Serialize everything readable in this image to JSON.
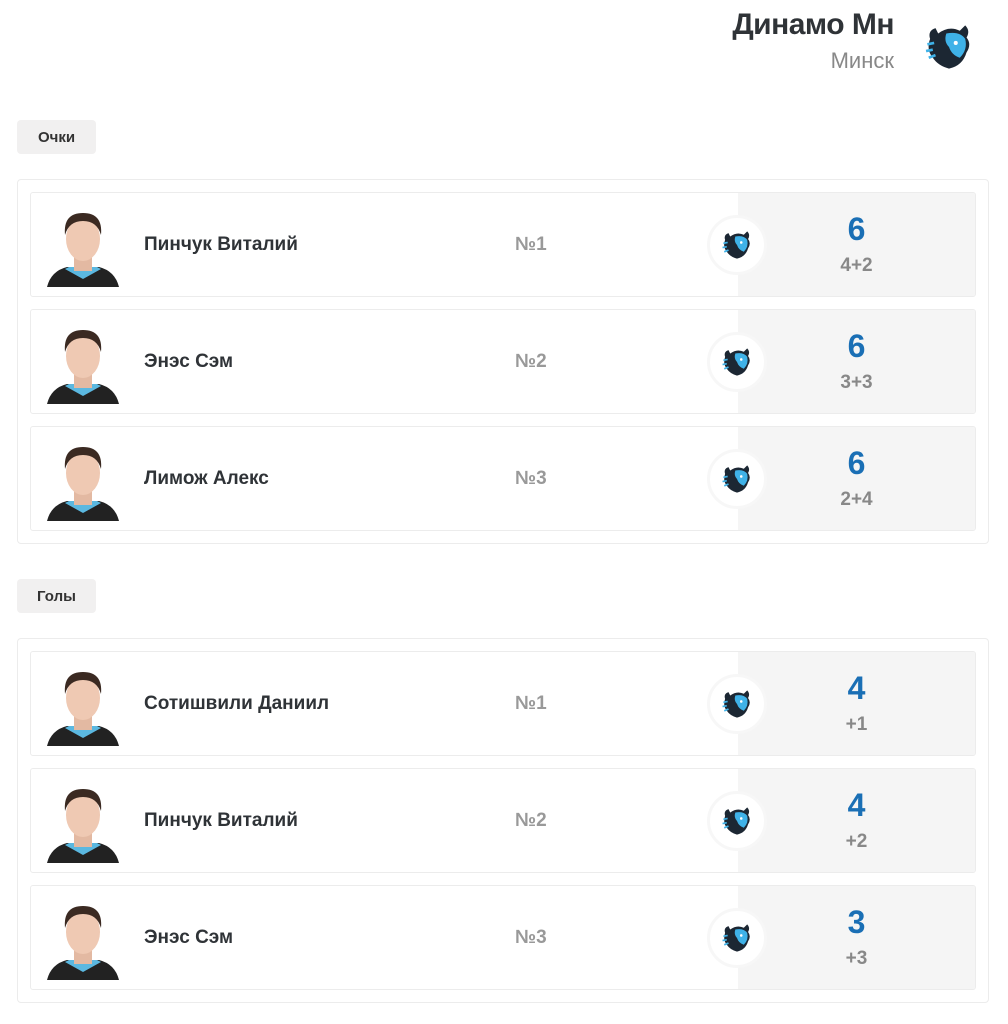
{
  "team": {
    "name": "Динамо Мн",
    "city": "Минск",
    "logo_icon": "bison-logo-icon"
  },
  "colors": {
    "accent": "#1a6fb5",
    "logo_blue": "#3fb2e8",
    "logo_dark": "#1c2733"
  },
  "sections": [
    {
      "label": "Очки",
      "players": [
        {
          "name": "Пинчук Виталий",
          "rank": "№1",
          "value": "6",
          "detail": "4+2"
        },
        {
          "name": "Энэс Сэм",
          "rank": "№2",
          "value": "6",
          "detail": "3+3"
        },
        {
          "name": "Лимож Алекс",
          "rank": "№3",
          "value": "6",
          "detail": "2+4"
        }
      ]
    },
    {
      "label": "Голы",
      "players": [
        {
          "name": "Сотишвили Даниил",
          "rank": "№1",
          "value": "4",
          "detail": "+1"
        },
        {
          "name": "Пинчук Виталий",
          "rank": "№2",
          "value": "4",
          "detail": "+2"
        },
        {
          "name": "Энэс Сэм",
          "rank": "№3",
          "value": "3",
          "detail": "+3"
        }
      ]
    }
  ]
}
